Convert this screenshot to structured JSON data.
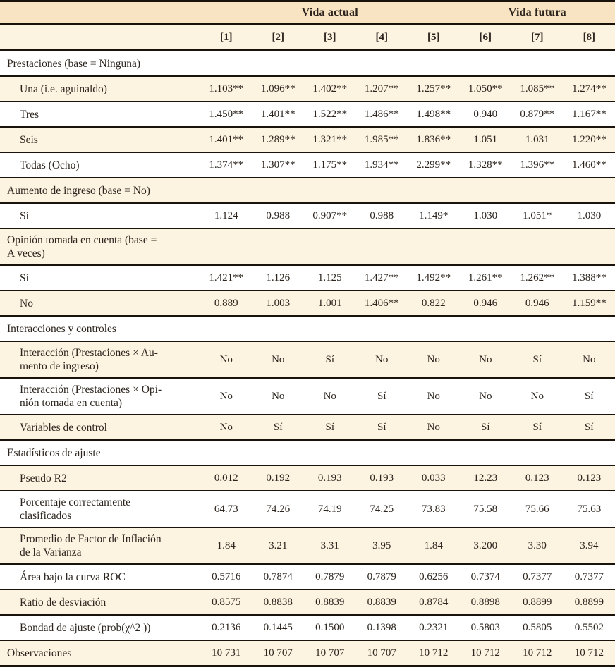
{
  "table": {
    "col_groups": [
      {
        "label": "Vida actual",
        "span": 5
      },
      {
        "label": "Vida futura",
        "span": 3
      }
    ],
    "col_headers": [
      "[1]",
      "[2]",
      "[3]",
      "[4]",
      "[5]",
      "[6]",
      "[7]",
      "[8]"
    ],
    "rows": [
      {
        "type": "section",
        "indent": false,
        "label": "Prestaciones (base = Ninguna)"
      },
      {
        "type": "data",
        "indent": true,
        "label": "Una (i.e. aguinaldo)",
        "values": [
          "1.103**",
          "1.096**",
          "1.402**",
          "1.207**",
          "1.257**",
          "1.050**",
          "1.085**",
          "1.274**"
        ]
      },
      {
        "type": "data",
        "indent": true,
        "label": "Tres",
        "values": [
          "1.450**",
          "1.401**",
          "1.522**",
          "1.486**",
          "1.498**",
          "0.940",
          "0.879**",
          "1.167**"
        ]
      },
      {
        "type": "data",
        "indent": true,
        "label": "Seis",
        "values": [
          "1.401**",
          "1.289**",
          "1.321**",
          "1.985**",
          "1.836**",
          "1.051",
          "1.031",
          "1.220**"
        ]
      },
      {
        "type": "data",
        "indent": true,
        "label": "Todas (Ocho)",
        "values": [
          "1.374**",
          "1.307**",
          "1.175**",
          "1.934**",
          "2.299**",
          "1.328**",
          "1.396**",
          "1.460**"
        ]
      },
      {
        "type": "section",
        "indent": false,
        "label": "Aumento de ingreso (base = No)"
      },
      {
        "type": "data",
        "indent": true,
        "label": "Sí",
        "values": [
          "1.124",
          "0.988",
          "0.907**",
          "0.988",
          "1.149*",
          "1.030",
          "1.051*",
          "1.030"
        ]
      },
      {
        "type": "section",
        "indent": false,
        "label": "Opinión tomada en cuenta (base =\nA veces)"
      },
      {
        "type": "data",
        "indent": true,
        "label": "Sí",
        "values": [
          "1.421**",
          "1.126",
          "1.125",
          "1.427**",
          "1.492**",
          "1.261**",
          "1.262**",
          "1.388**"
        ]
      },
      {
        "type": "data",
        "indent": true,
        "label": "No",
        "values": [
          "0.889",
          "1.003",
          "1.001",
          "1.406**",
          "0.822",
          "0.946",
          "0.946",
          "1.159**"
        ]
      },
      {
        "type": "section",
        "indent": false,
        "label": "Interacciones y controles"
      },
      {
        "type": "data",
        "indent": true,
        "label": "Interacción (Prestaciones × Au-\nmento de ingreso)",
        "values": [
          "No",
          "No",
          "Sí",
          "No",
          "No",
          "No",
          "Sí",
          "No"
        ]
      },
      {
        "type": "data",
        "indent": true,
        "label": "Interacción (Prestaciones × Opi-\nnión tomada en cuenta)",
        "values": [
          "No",
          "No",
          "No",
          "Sí",
          "No",
          "No",
          "No",
          "Sí"
        ]
      },
      {
        "type": "data",
        "indent": true,
        "label": "Variables de control",
        "values": [
          "No",
          "Sí",
          "Sí",
          "Sí",
          "No",
          "Sí",
          "Sí",
          "Sí"
        ]
      },
      {
        "type": "section",
        "indent": false,
        "label": "Estadísticos de ajuste"
      },
      {
        "type": "data",
        "indent": true,
        "label": "Pseudo R2",
        "values": [
          "0.012",
          "0.192",
          "0.193",
          "0.193",
          "0.033",
          "12.23",
          "0.123",
          "0.123"
        ]
      },
      {
        "type": "data",
        "indent": true,
        "label": "Porcentaje correctamente\nclasificados",
        "values": [
          "64.73",
          "74.26",
          "74.19",
          "74.25",
          "73.83",
          "75.58",
          "75.66",
          "75.63"
        ]
      },
      {
        "type": "data",
        "indent": true,
        "label": "Promedio de Factor de Inflación\nde la Varianza",
        "values": [
          "1.84",
          "3.21",
          "3.31",
          "3.95",
          "1.84",
          "3.200",
          "3.30",
          "3.94"
        ]
      },
      {
        "type": "data",
        "indent": true,
        "label": "Área bajo la curva ROC",
        "values": [
          "0.5716",
          "0.7874",
          "0.7879",
          "0.7879",
          "0.6256",
          "0.7374",
          "0.7377",
          "0.7377"
        ]
      },
      {
        "type": "data",
        "indent": true,
        "label": "Ratio de desviación",
        "values": [
          "0.8575",
          "0.8838",
          "0.8839",
          "0.8839",
          "0.8784",
          "0.8898",
          "0.8899",
          "0.8899"
        ]
      },
      {
        "type": "data",
        "indent": true,
        "label": "Bondad de ajuste (prob(χ^2 ))",
        "values": [
          "0.2136",
          "0.1445",
          "0.1500",
          "0.1398",
          "0.2321",
          "0.5803",
          "0.5805",
          "0.5502"
        ]
      },
      {
        "type": "data",
        "indent": false,
        "label": "Observaciones",
        "values": [
          "10 731",
          "10 707",
          "10 707",
          "10 707",
          "10 712",
          "10 712",
          "10 712",
          "10 712"
        ]
      }
    ]
  }
}
